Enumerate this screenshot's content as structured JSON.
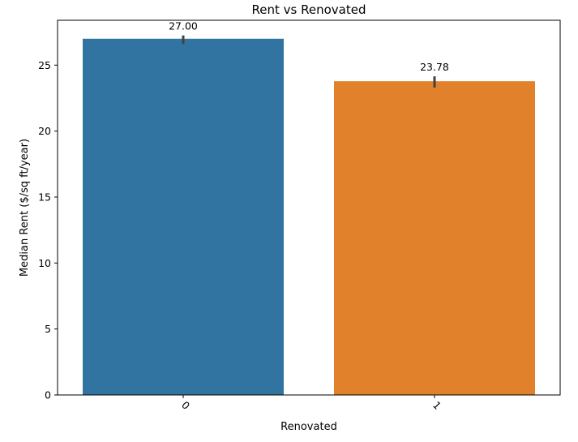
{
  "chart_data": {
    "type": "bar",
    "title": "Rent vs Renovated",
    "xlabel": "Renovated",
    "ylabel": "Median Rent ($/sq ft/year)",
    "categories": [
      "0",
      "1"
    ],
    "values": [
      27.0,
      23.78
    ],
    "value_labels": [
      "27.00",
      "23.78"
    ],
    "error_bars": [
      [
        26.6,
        27.25
      ],
      [
        23.3,
        24.15
      ]
    ],
    "colors": [
      "#3274a1",
      "#e1812c"
    ],
    "ylim": [
      0,
      28.4
    ],
    "yticks": [
      0,
      5,
      10,
      15,
      20,
      25
    ],
    "ytick_labels": [
      "0",
      "5",
      "10",
      "15",
      "20",
      "25"
    ],
    "xtick_rotation": 45,
    "grid": false,
    "legend": "none"
  }
}
